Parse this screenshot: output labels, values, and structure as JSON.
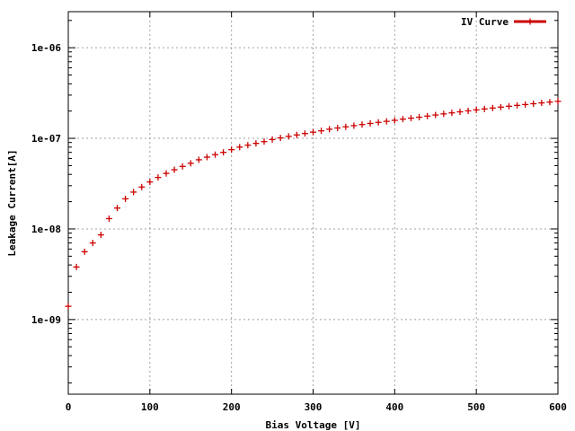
{
  "chart_data": {
    "type": "scatter",
    "xlabel": "Bias Voltage [V]",
    "ylabel": "Leakage Current[A]",
    "xlim": [
      0,
      600
    ],
    "ylim": [
      1.5e-10,
      2.5e-06
    ],
    "y_scale": "log",
    "grid": true,
    "legend_position": "top-right",
    "x_ticks": [
      0,
      100,
      200,
      300,
      400,
      500,
      600
    ],
    "x_tick_labels": [
      "0",
      "100",
      "200",
      "300",
      "400",
      "500",
      "600"
    ],
    "y_ticks": [
      1e-09,
      1e-08,
      1e-07,
      1e-06
    ],
    "y_tick_labels": [
      "1e-09",
      "1e-08",
      "1e-07",
      "1e-06"
    ],
    "series": [
      {
        "name": "IV Curve",
        "color": "#cc0000",
        "marker": "plus",
        "x": [
          0,
          10,
          20,
          30,
          40,
          50,
          60,
          70,
          80,
          90,
          100,
          110,
          120,
          130,
          140,
          150,
          160,
          170,
          180,
          190,
          200,
          210,
          220,
          230,
          240,
          250,
          260,
          270,
          280,
          290,
          300,
          310,
          320,
          330,
          340,
          350,
          360,
          370,
          380,
          390,
          400,
          410,
          420,
          430,
          440,
          450,
          460,
          470,
          480,
          490,
          500,
          510,
          520,
          530,
          540,
          550,
          560,
          570,
          580,
          590,
          600
        ],
        "y": [
          1.4e-09,
          3.8e-09,
          5.6e-09,
          7e-09,
          8.6e-09,
          1.3e-08,
          1.7e-08,
          2.15e-08,
          2.55e-08,
          2.9e-08,
          3.3e-08,
          3.7e-08,
          4.1e-08,
          4.5e-08,
          4.9e-08,
          5.3e-08,
          5.8e-08,
          6.2e-08,
          6.6e-08,
          7e-08,
          7.5e-08,
          8e-08,
          8.4e-08,
          8.8e-08,
          9.2e-08,
          9.7e-08,
          1.01e-07,
          1.05e-07,
          1.09e-07,
          1.13e-07,
          1.17e-07,
          1.21e-07,
          1.26e-07,
          1.3e-07,
          1.34e-07,
          1.38e-07,
          1.42e-07,
          1.46e-07,
          1.5e-07,
          1.54e-07,
          1.58e-07,
          1.63e-07,
          1.67e-07,
          1.71e-07,
          1.76e-07,
          1.81e-07,
          1.86e-07,
          1.91e-07,
          1.96e-07,
          2.01e-07,
          2.06e-07,
          2.11e-07,
          2.16e-07,
          2.21e-07,
          2.26e-07,
          2.31e-07,
          2.36e-07,
          2.41e-07,
          2.46e-07,
          2.51e-07,
          2.56e-07
        ]
      }
    ]
  }
}
